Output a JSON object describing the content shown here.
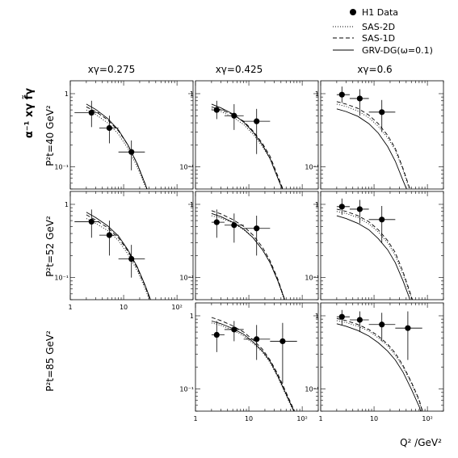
{
  "chart_data": {
    "type": "scatter",
    "legend": {
      "placement": "top-right",
      "entries": [
        {
          "label": "H1 Data",
          "marker": "filled-circle"
        },
        {
          "label": "SAS-2D",
          "style": "dotted"
        },
        {
          "label": "SAS-1D",
          "style": "dashed"
        },
        {
          "label": "GRV-DG(ω=0.1)",
          "style": "solid"
        }
      ]
    },
    "ylabel": "α⁻¹ xγ f̃γ",
    "xlabel": "Q² /GeV²",
    "x_scale": "log",
    "y_scale": "log",
    "xlim": [
      1,
      200
    ],
    "ylim": [
      0.05,
      1.5
    ],
    "x_ticks": [
      {
        "value": 1,
        "label": "1"
      },
      {
        "value": 10,
        "label": "10"
      },
      {
        "value": 100,
        "label": "10²"
      }
    ],
    "y_ticks": [
      {
        "value": 0.1,
        "label": "10⁻¹"
      },
      {
        "value": 1,
        "label": "1"
      }
    ],
    "columns": [
      "xγ=0.275",
      "xγ=0.425",
      "xγ=0.6"
    ],
    "rows": [
      "P²t=40 GeV²",
      "P²t=52 GeV²",
      "P²t=85 GeV²"
    ],
    "panels": [
      {
        "row": 0,
        "col": 0,
        "points": [
          {
            "x": 2.5,
            "y": 0.55,
            "xerr": [
              1.2,
              3.5
            ],
            "yerr": [
              0.35,
              0.8
            ]
          },
          {
            "x": 5.4,
            "y": 0.34,
            "xerr": [
              3.5,
              8
            ],
            "yerr": [
              0.21,
              0.5
            ]
          },
          {
            "x": 14,
            "y": 0.16,
            "xerr": [
              8,
              25
            ],
            "yerr": [
              0.09,
              0.23
            ]
          }
        ],
        "curves": {
          "grv": {
            "x": [
              2,
              3,
              5,
              8,
              12,
              18,
              25,
              30,
              32
            ],
            "y": [
              0.72,
              0.61,
              0.46,
              0.32,
              0.2,
              0.11,
              0.06,
              0.042,
              0.038
            ]
          },
          "sas1d": {
            "x": [
              2,
              3,
              5,
              8,
              12,
              18,
              25,
              30
            ],
            "y": [
              0.66,
              0.57,
              0.44,
              0.31,
              0.2,
              0.11,
              0.06,
              0.042
            ]
          },
          "sas2d": {
            "x": [
              2,
              3,
              5,
              8,
              12,
              18,
              25,
              30
            ],
            "y": [
              0.6,
              0.52,
              0.4,
              0.28,
              0.18,
              0.1,
              0.056,
              0.04
            ]
          }
        }
      },
      {
        "row": 0,
        "col": 1,
        "points": [
          {
            "x": 2.5,
            "y": 0.6,
            "xerr": [
              2,
              3.5
            ],
            "yerr": [
              0.45,
              0.8
            ]
          },
          {
            "x": 5.3,
            "y": 0.5,
            "xerr": [
              3.5,
              8
            ],
            "yerr": [
              0.32,
              0.72
            ]
          },
          {
            "x": 14,
            "y": 0.42,
            "xerr": [
              8,
              25
            ],
            "yerr": [
              0.15,
              0.62
            ]
          }
        ],
        "curves": {
          "grv": {
            "x": [
              2,
              3,
              5,
              8,
              12,
              18,
              25,
              35,
              45,
              50
            ],
            "y": [
              0.72,
              0.64,
              0.53,
              0.41,
              0.3,
              0.2,
              0.13,
              0.07,
              0.045,
              0.038
            ]
          },
          "sas1d": {
            "x": [
              2,
              3,
              5,
              8,
              12,
              18,
              25,
              35,
              45,
              52
            ],
            "y": [
              0.66,
              0.6,
              0.52,
              0.42,
              0.31,
              0.21,
              0.14,
              0.075,
              0.047,
              0.038
            ]
          },
          "sas2d": {
            "x": [
              2,
              3,
              5,
              8,
              12,
              18,
              25,
              35,
              45,
              50
            ],
            "y": [
              0.62,
              0.57,
              0.48,
              0.38,
              0.28,
              0.19,
              0.13,
              0.07,
              0.045,
              0.038
            ]
          }
        }
      },
      {
        "row": 0,
        "col": 2,
        "points": [
          {
            "x": 2.5,
            "y": 0.97,
            "xerr": [
              2,
              3.5
            ],
            "yerr": [
              0.75,
              1.25
            ]
          },
          {
            "x": 5.4,
            "y": 0.86,
            "xerr": [
              3.5,
              8
            ],
            "yerr": [
              0.5,
              1.15
            ]
          },
          {
            "x": 14,
            "y": 0.56,
            "xerr": [
              8,
              25
            ],
            "yerr": [
              0.3,
              0.82
            ]
          }
        ],
        "curves": {
          "grv": {
            "x": [
              2,
              3,
              5,
              8,
              12,
              18,
              25,
              35,
              45,
              52
            ],
            "y": [
              0.62,
              0.57,
              0.49,
              0.39,
              0.29,
              0.19,
              0.12,
              0.065,
              0.042,
              0.038
            ]
          },
          "sas1d": {
            "x": [
              2,
              3,
              5,
              8,
              12,
              18,
              25,
              35,
              45,
              55
            ],
            "y": [
              0.78,
              0.72,
              0.63,
              0.51,
              0.39,
              0.27,
              0.18,
              0.095,
              0.055,
              0.038
            ]
          },
          "sas2d": {
            "x": [
              2,
              3,
              5,
              8,
              12,
              18,
              25,
              35,
              45,
              55
            ],
            "y": [
              0.72,
              0.67,
              0.58,
              0.47,
              0.36,
              0.25,
              0.17,
              0.09,
              0.052,
              0.038
            ]
          }
        }
      },
      {
        "row": 1,
        "col": 0,
        "points": [
          {
            "x": 2.5,
            "y": 0.58,
            "xerr": [
              1.2,
              3.5
            ],
            "yerr": [
              0.35,
              0.85
            ]
          },
          {
            "x": 5.4,
            "y": 0.38,
            "xerr": [
              3.5,
              8
            ],
            "yerr": [
              0.2,
              0.6
            ]
          },
          {
            "x": 14,
            "y": 0.18,
            "xerr": [
              8,
              25
            ],
            "yerr": [
              0.1,
              0.28
            ]
          }
        ],
        "curves": {
          "grv": {
            "x": [
              2,
              3,
              5,
              8,
              12,
              18,
              25,
              32,
              36
            ],
            "y": [
              0.78,
              0.66,
              0.51,
              0.37,
              0.24,
              0.14,
              0.08,
              0.05,
              0.038
            ]
          },
          "sas1d": {
            "x": [
              2,
              3,
              5,
              8,
              12,
              18,
              25,
              32,
              36
            ],
            "y": [
              0.72,
              0.61,
              0.48,
              0.35,
              0.23,
              0.135,
              0.078,
              0.048,
              0.038
            ]
          },
          "sas2d": {
            "x": [
              2,
              3,
              5,
              8,
              12,
              18,
              25,
              32,
              36
            ],
            "y": [
              0.64,
              0.55,
              0.44,
              0.32,
              0.21,
              0.125,
              0.072,
              0.045,
              0.038
            ]
          }
        }
      },
      {
        "row": 1,
        "col": 1,
        "points": [
          {
            "x": 2.5,
            "y": 0.57,
            "xerr": [
              2,
              3.5
            ],
            "yerr": [
              0.35,
              0.85
            ]
          },
          {
            "x": 5.3,
            "y": 0.52,
            "xerr": [
              3.5,
              8
            ],
            "yerr": [
              0.3,
              0.75
            ]
          },
          {
            "x": 14,
            "y": 0.47,
            "xerr": [
              8,
              25
            ],
            "yerr": [
              0.2,
              0.7
            ]
          }
        ],
        "curves": {
          "grv": {
            "x": [
              2,
              3,
              5,
              8,
              12,
              18,
              25,
              35,
              45,
              50
            ],
            "y": [
              0.75,
              0.68,
              0.57,
              0.46,
              0.35,
              0.24,
              0.16,
              0.09,
              0.055,
              0.042
            ]
          },
          "sas1d": {
            "x": [
              2,
              3,
              5,
              8,
              12,
              18,
              25,
              35,
              45,
              52
            ],
            "y": [
              0.82,
              0.74,
              0.62,
              0.5,
              0.38,
              0.26,
              0.17,
              0.095,
              0.055,
              0.04
            ]
          },
          "sas2d": {
            "x": [
              2,
              3,
              5,
              8,
              12,
              18,
              25,
              35,
              45,
              52
            ],
            "y": [
              0.7,
              0.65,
              0.56,
              0.45,
              0.35,
              0.24,
              0.16,
              0.09,
              0.052,
              0.038
            ]
          }
        }
      },
      {
        "row": 1,
        "col": 2,
        "points": [
          {
            "x": 2.5,
            "y": 0.93,
            "xerr": [
              2,
              3.5
            ],
            "yerr": [
              0.72,
              1.2
            ]
          },
          {
            "x": 5.4,
            "y": 0.86,
            "xerr": [
              3.5,
              8
            ],
            "yerr": [
              0.55,
              1.15
            ]
          },
          {
            "x": 14,
            "y": 0.62,
            "xerr": [
              8,
              25
            ],
            "yerr": [
              0.3,
              0.95
            ]
          }
        ],
        "curves": {
          "grv": {
            "x": [
              2,
              3,
              5,
              8,
              12,
              18,
              25,
              35,
              45,
              52
            ],
            "y": [
              0.7,
              0.64,
              0.55,
              0.45,
              0.34,
              0.24,
              0.16,
              0.09,
              0.055,
              0.04
            ]
          },
          "sas1d": {
            "x": [
              2,
              3,
              5,
              8,
              12,
              18,
              25,
              35,
              45,
              58
            ],
            "y": [
              0.86,
              0.8,
              0.7,
              0.58,
              0.45,
              0.32,
              0.22,
              0.12,
              0.07,
              0.04
            ]
          },
          "sas2d": {
            "x": [
              2,
              3,
              5,
              8,
              12,
              18,
              25,
              35,
              45,
              58
            ],
            "y": [
              0.8,
              0.75,
              0.66,
              0.54,
              0.42,
              0.3,
              0.2,
              0.11,
              0.065,
              0.038
            ]
          }
        }
      },
      {
        "row": 2,
        "col": 1,
        "points": [
          {
            "x": 2.5,
            "y": 0.55,
            "xerr": [
              2,
              3.5
            ],
            "yerr": [
              0.32,
              0.85
            ]
          },
          {
            "x": 5.3,
            "y": 0.65,
            "xerr": [
              3.5,
              8
            ],
            "yerr": [
              0.45,
              0.85
            ]
          },
          {
            "x": 14,
            "y": 0.48,
            "xerr": [
              8,
              25
            ],
            "yerr": [
              0.25,
              0.75
            ]
          },
          {
            "x": 43,
            "y": 0.45,
            "xerr": [
              25,
              80
            ],
            "yerr": [
              0.12,
              0.8
            ]
          }
        ],
        "curves": {
          "grv": {
            "x": [
              2,
              3,
              5,
              8,
              12,
              18,
              25,
              35,
              50,
              70,
              85
            ],
            "y": [
              0.85,
              0.78,
              0.67,
              0.56,
              0.44,
              0.33,
              0.24,
              0.15,
              0.085,
              0.05,
              0.038
            ]
          },
          "sas1d": {
            "x": [
              2,
              3,
              5,
              8,
              12,
              18,
              25,
              35,
              50,
              70,
              85
            ],
            "y": [
              0.95,
              0.86,
              0.73,
              0.6,
              0.47,
              0.35,
              0.25,
              0.16,
              0.09,
              0.052,
              0.038
            ]
          },
          "sas2d": {
            "x": [
              2,
              3,
              5,
              8,
              12,
              18,
              25,
              35,
              50,
              70,
              85
            ],
            "y": [
              0.8,
              0.74,
              0.64,
              0.53,
              0.42,
              0.32,
              0.23,
              0.145,
              0.082,
              0.048,
              0.036
            ]
          }
        }
      },
      {
        "row": 2,
        "col": 2,
        "points": [
          {
            "x": 2.5,
            "y": 0.97,
            "xerr": [
              2,
              3.5
            ],
            "yerr": [
              0.75,
              1.2
            ]
          },
          {
            "x": 5.4,
            "y": 0.88,
            "xerr": [
              3.5,
              8
            ],
            "yerr": [
              0.6,
              1.15
            ]
          },
          {
            "x": 14,
            "y": 0.76,
            "xerr": [
              8,
              25
            ],
            "yerr": [
              0.45,
              1.1
            ]
          },
          {
            "x": 43,
            "y": 0.68,
            "xerr": [
              25,
              80
            ],
            "yerr": [
              0.25,
              1.15
            ]
          }
        ],
        "curves": {
          "grv": {
            "x": [
              2,
              3,
              5,
              8,
              12,
              18,
              25,
              35,
              50,
              70,
              85
            ],
            "y": [
              0.78,
              0.72,
              0.63,
              0.53,
              0.43,
              0.33,
              0.25,
              0.17,
              0.1,
              0.058,
              0.038
            ]
          },
          "sas1d": {
            "x": [
              2,
              3,
              5,
              8,
              12,
              18,
              25,
              35,
              50,
              70,
              90
            ],
            "y": [
              0.92,
              0.86,
              0.76,
              0.65,
              0.53,
              0.41,
              0.31,
              0.21,
              0.125,
              0.072,
              0.038
            ]
          },
          "sas2d": {
            "x": [
              2,
              3,
              5,
              8,
              12,
              18,
              25,
              35,
              50,
              70,
              90
            ],
            "y": [
              0.86,
              0.81,
              0.72,
              0.62,
              0.5,
              0.39,
              0.29,
              0.2,
              0.12,
              0.068,
              0.036
            ]
          }
        }
      }
    ]
  }
}
